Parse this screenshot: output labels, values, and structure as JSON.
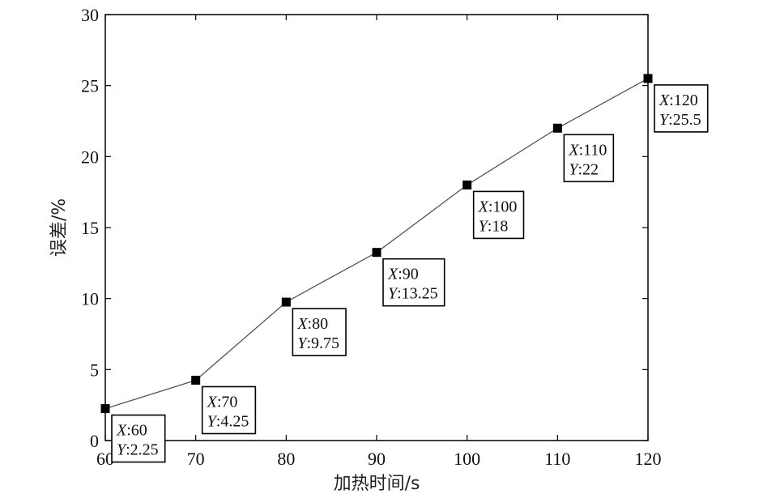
{
  "chart_data": {
    "type": "line",
    "xlabel": "加热时间/s",
    "ylabel": "误差/%",
    "xlim": [
      60,
      120
    ],
    "ylim": [
      0,
      30
    ],
    "xticks": [
      60,
      70,
      80,
      90,
      100,
      110,
      120
    ],
    "yticks": [
      0,
      5,
      10,
      15,
      20,
      25,
      30
    ],
    "grid": false,
    "line_color": "#555555",
    "marker_color": "#000000",
    "x": [
      60,
      70,
      80,
      90,
      100,
      110,
      120
    ],
    "y": [
      2.25,
      4.25,
      9.75,
      13.25,
      18,
      22,
      25.5
    ],
    "datatips": [
      {
        "x_label": "X",
        "x_value": "60",
        "y_label": "Y",
        "y_value": "2.25"
      },
      {
        "x_label": "X",
        "x_value": "70",
        "y_label": "Y",
        "y_value": "4.25"
      },
      {
        "x_label": "X",
        "x_value": "80",
        "y_label": "Y",
        "y_value": "9.75"
      },
      {
        "x_label": "X",
        "x_value": "90",
        "y_label": "Y",
        "y_value": "13.25"
      },
      {
        "x_label": "X",
        "x_value": "100",
        "y_label": "Y",
        "y_value": "18"
      },
      {
        "x_label": "X",
        "x_value": "110",
        "y_label": "Y",
        "y_value": "22"
      },
      {
        "x_label": "X",
        "x_value": "120",
        "y_label": "Y",
        "y_value": "25.5"
      }
    ]
  }
}
